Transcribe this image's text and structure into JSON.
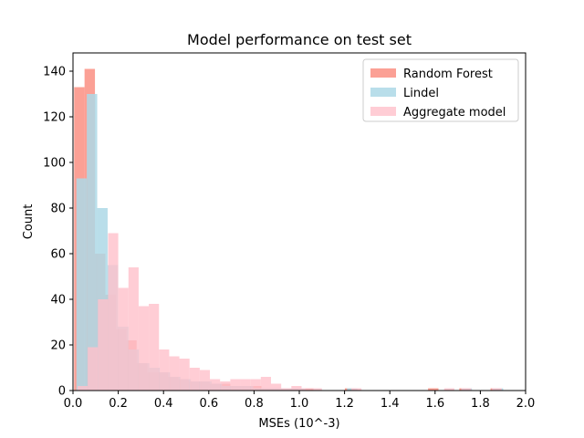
{
  "chart_data": {
    "type": "bar",
    "title": "Model performance on test set",
    "xlabel": "MSEs (10^-3)",
    "ylabel": "Count",
    "xlim": [
      0,
      2.0
    ],
    "ylim": [
      0,
      148
    ],
    "xticks": [
      "0.0",
      "0.2",
      "0.4",
      "0.6",
      "0.8",
      "1.0",
      "1.2",
      "1.4",
      "1.6",
      "1.8",
      "2.0"
    ],
    "yticks": [
      "0",
      "20",
      "40",
      "60",
      "80",
      "100",
      "120",
      "140"
    ],
    "grid": false,
    "legend_position": "top-right",
    "series": [
      {
        "name": "Random Forest",
        "color": "#fa8072",
        "opacity": 0.75,
        "bin_width": 0.046,
        "bins": [
          [
            0.005,
            133
          ],
          [
            0.051,
            141
          ],
          [
            0.097,
            60
          ],
          [
            0.143,
            42
          ],
          [
            0.189,
            27
          ],
          [
            0.235,
            22
          ],
          [
            0.281,
            12
          ],
          [
            0.327,
            8
          ],
          [
            0.373,
            8
          ],
          [
            0.419,
            6
          ],
          [
            0.465,
            5
          ],
          [
            0.511,
            4
          ],
          [
            0.557,
            4
          ],
          [
            0.603,
            3
          ],
          [
            0.649,
            3
          ],
          [
            0.695,
            2
          ],
          [
            0.741,
            2
          ],
          [
            0.787,
            2
          ],
          [
            0.833,
            1
          ],
          [
            0.879,
            1
          ],
          [
            0.925,
            1
          ],
          [
            0.971,
            1
          ],
          [
            1.017,
            1
          ],
          [
            1.201,
            1
          ],
          [
            1.569,
            1
          ],
          [
            1.707,
            1
          ],
          [
            1.845,
            1
          ]
        ]
      },
      {
        "name": "Lindel",
        "color": "#add8e6",
        "opacity": 0.85,
        "bin_width": 0.046,
        "bins": [
          [
            0.015,
            93
          ],
          [
            0.061,
            130
          ],
          [
            0.107,
            80
          ],
          [
            0.153,
            55
          ],
          [
            0.199,
            28
          ],
          [
            0.245,
            18
          ],
          [
            0.291,
            12
          ],
          [
            0.337,
            10
          ],
          [
            0.383,
            8
          ],
          [
            0.429,
            6
          ],
          [
            0.475,
            5
          ],
          [
            0.521,
            4
          ],
          [
            0.567,
            4
          ],
          [
            0.613,
            3
          ],
          [
            0.659,
            2
          ],
          [
            0.705,
            2
          ],
          [
            0.751,
            2
          ],
          [
            0.797,
            1
          ],
          [
            0.843,
            1
          ],
          [
            0.889,
            1
          ],
          [
            0.935,
            1
          ],
          [
            0.981,
            1
          ],
          [
            1.211,
            1
          ],
          [
            1.717,
            1
          ],
          [
            1.855,
            1
          ]
        ]
      },
      {
        "name": "Aggregate model",
        "color": "#ffc0cb",
        "opacity": 0.8,
        "bin_width": 0.045,
        "bins": [
          [
            0.02,
            2
          ],
          [
            0.065,
            19
          ],
          [
            0.11,
            40
          ],
          [
            0.155,
            69
          ],
          [
            0.2,
            45
          ],
          [
            0.245,
            54
          ],
          [
            0.29,
            37
          ],
          [
            0.335,
            38
          ],
          [
            0.38,
            18
          ],
          [
            0.425,
            15
          ],
          [
            0.47,
            14
          ],
          [
            0.515,
            10
          ],
          [
            0.56,
            9
          ],
          [
            0.605,
            5
          ],
          [
            0.65,
            4
          ],
          [
            0.695,
            5
          ],
          [
            0.74,
            5
          ],
          [
            0.785,
            5
          ],
          [
            0.83,
            6
          ],
          [
            0.875,
            3
          ],
          [
            0.92,
            1
          ],
          [
            0.965,
            2
          ],
          [
            1.01,
            1
          ],
          [
            1.055,
            1
          ],
          [
            1.23,
            1
          ],
          [
            1.64,
            1
          ],
          [
            1.715,
            1
          ],
          [
            1.85,
            1
          ]
        ]
      }
    ]
  }
}
